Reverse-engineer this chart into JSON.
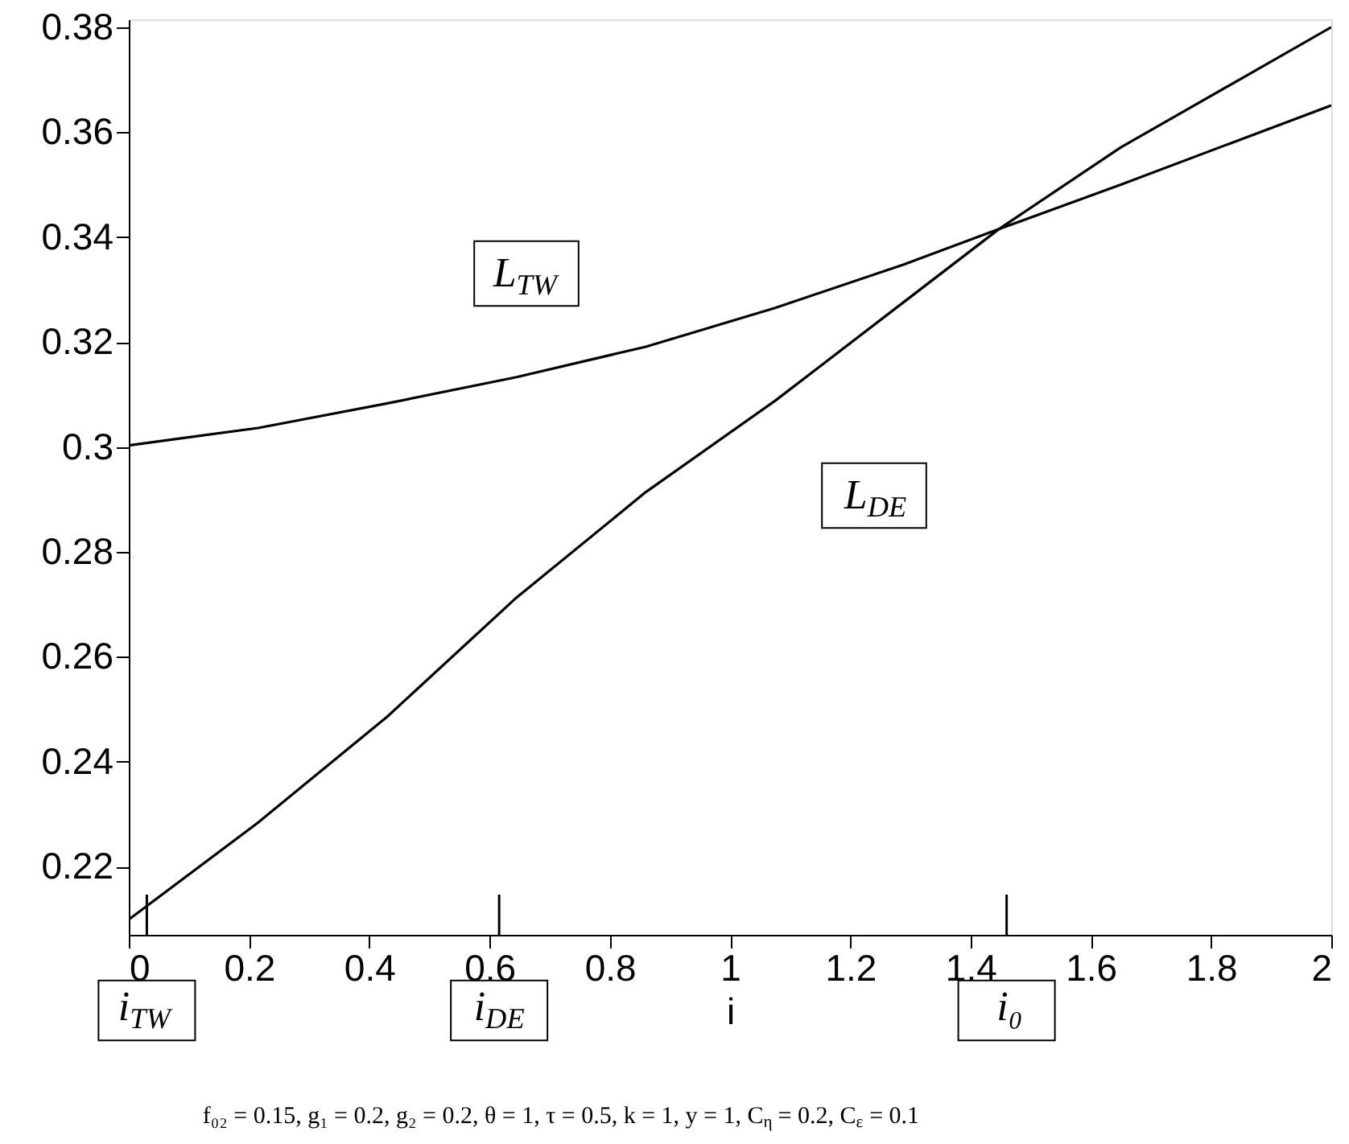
{
  "chart_data": {
    "type": "line",
    "xlabel": "i",
    "series": [
      {
        "color": "#000000",
        "x": [
          0,
          0.215,
          0.43,
          0.645,
          0.86,
          1.075,
          1.29,
          1.447,
          1.65,
          2.0
        ],
        "values": [
          0.3003,
          0.3036,
          0.3083,
          0.3133,
          0.3191,
          0.3265,
          0.3348,
          0.3415,
          0.35,
          0.3651
        ]
      },
      {
        "color": "#000000",
        "x": [
          0,
          0.215,
          0.43,
          0.645,
          0.86,
          1.075,
          1.29,
          1.447,
          1.65,
          2.0
        ],
        "values": [
          0.2099,
          0.2284,
          0.2486,
          0.2713,
          0.2914,
          0.3088,
          0.3277,
          0.3415,
          0.3571,
          0.38
        ]
      }
    ],
    "xlim": [
      0,
      2
    ],
    "xticks": [
      0,
      0.2,
      0.4,
      0.6,
      0.8,
      1,
      1.2,
      1.4,
      1.6,
      1.8,
      2
    ],
    "ylim": [
      0.207,
      0.3815
    ],
    "yticks": [
      0.22,
      0.24,
      0.26,
      0.28,
      0.3,
      0.32,
      0.34,
      0.36,
      0.38
    ],
    "ref_lines": [
      {
        "axis": "x",
        "value": 0.03,
        "label": "i$_{TW}$"
      },
      {
        "axis": "x",
        "value": 0.616,
        "label": "i$_{DE}$"
      },
      {
        "axis": "x",
        "value": 1.46,
        "label": "i₀"
      }
    ],
    "annotations": [
      "L$_{TW}$",
      "L$_{DE}$",
      "f₀₂ = 0.15, g₁ = 0.2, g₂ = 0.2, θ = 1, τ = 0.5, k = 1, y = 1, C$_{η}$ = 0.2, C$_{ε}$ = 0.1"
    ]
  }
}
